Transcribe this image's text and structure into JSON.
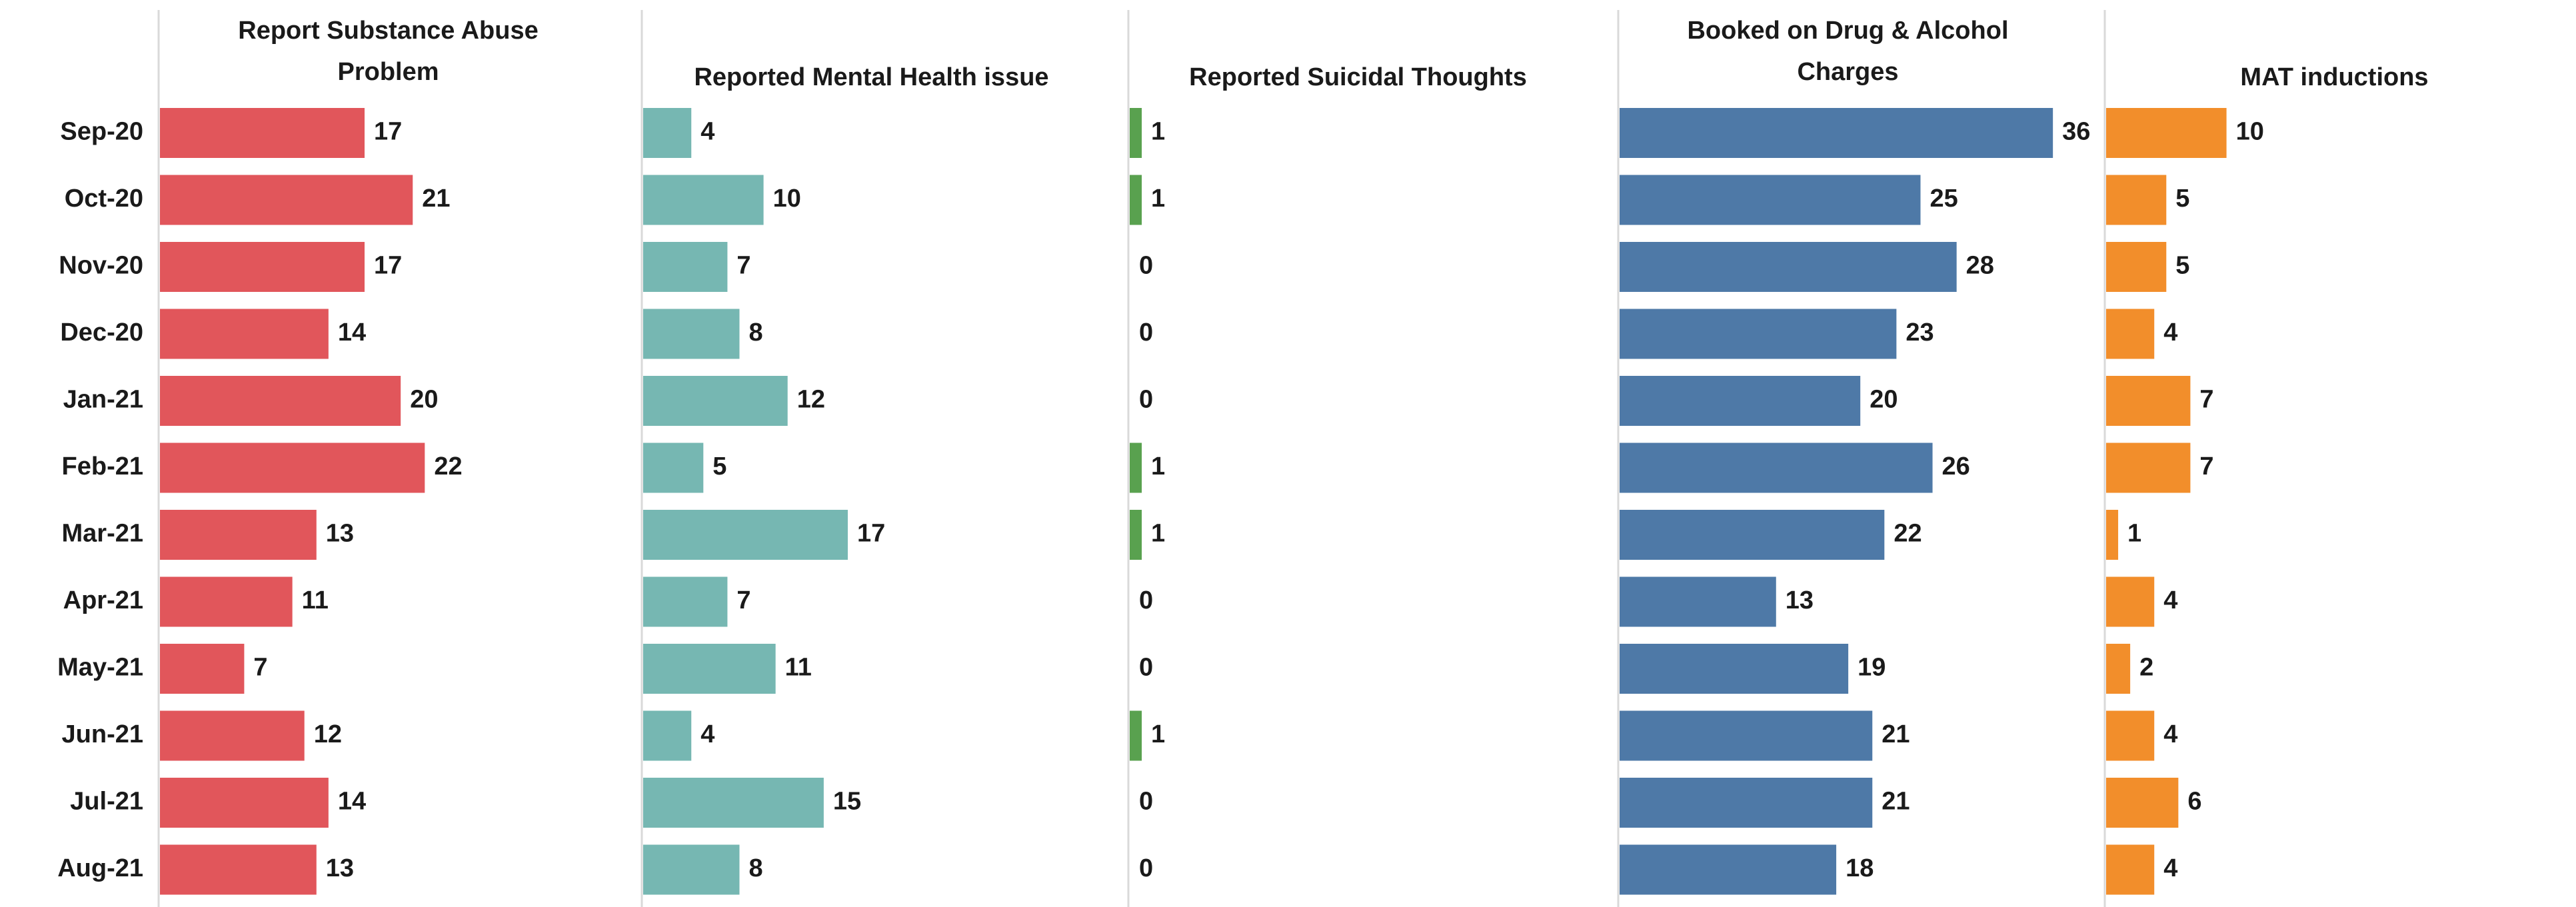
{
  "chart_data": {
    "type": "bar",
    "orientation": "horizontal",
    "categories": [
      "Sep-20",
      "Oct-20",
      "Nov-20",
      "Dec-20",
      "Jan-21",
      "Feb-21",
      "Mar-21",
      "Apr-21",
      "May-21",
      "Jun-21",
      "Jul-21",
      "Aug-21"
    ],
    "series": [
      {
        "name": "Report Substance Abuse Problem",
        "title_lines": [
          "Report Substance Abuse",
          "Problem"
        ],
        "color": "#e1565b",
        "values": [
          17,
          21,
          17,
          14,
          20,
          22,
          13,
          11,
          7,
          12,
          14,
          13
        ]
      },
      {
        "name": "Reported Mental Health issue",
        "title_lines": [
          "Reported Mental Health issue"
        ],
        "color": "#76b7b2",
        "values": [
          4,
          10,
          7,
          8,
          12,
          5,
          17,
          7,
          11,
          4,
          15,
          8
        ]
      },
      {
        "name": "Reported Suicidal Thoughts",
        "title_lines": [
          "Reported Suicidal Thoughts"
        ],
        "color": "#59a14f",
        "values": [
          1,
          1,
          0,
          0,
          0,
          1,
          1,
          0,
          0,
          1,
          0,
          0
        ]
      },
      {
        "name": "Booked on Drug & Alcohol Charges",
        "title_lines": [
          "Booked on Drug & Alcohol",
          "Charges"
        ],
        "color": "#4e79a7",
        "values": [
          36,
          25,
          28,
          23,
          20,
          26,
          22,
          13,
          19,
          21,
          21,
          18
        ]
      },
      {
        "name": "MAT inductions",
        "title_lines": [
          "MAT inductions"
        ],
        "color": "#f28e2b",
        "values": [
          10,
          5,
          5,
          4,
          7,
          7,
          1,
          4,
          2,
          4,
          6,
          4
        ]
      }
    ],
    "data_labels": true,
    "grid": false,
    "legend": "none"
  }
}
